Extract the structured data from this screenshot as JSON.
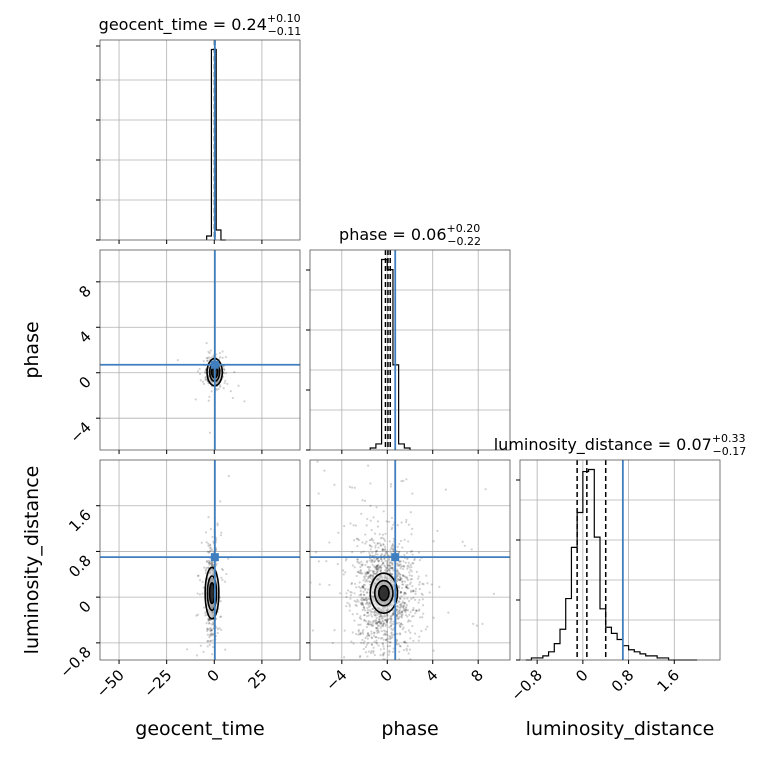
{
  "chart_data": {
    "type": "corner",
    "parameters": [
      "geocent_time",
      "phase",
      "luminosity_distance"
    ],
    "truth_color": "#3f7fbf",
    "panels": [
      {
        "id": "hist-geocent_time",
        "kind": "histogram",
        "param": "geocent_time",
        "title": {
          "prefix": "geocent_time = 0.24",
          "sup": "+0.10",
          "sub": "−0.11"
        },
        "xlim": [
          -60,
          45
        ],
        "xticks": [
          -50,
          -25,
          0,
          25
        ],
        "bin_edges": [
          -4,
          -1.5,
          1,
          3.5,
          6
        ],
        "counts": [
          0.02,
          0.95,
          0.05,
          0.0
        ],
        "quantiles": [
          0.13,
          0.24,
          0.34
        ],
        "truth": 0.3
      },
      {
        "id": "hist-phase",
        "kind": "histogram",
        "param": "phase",
        "title": {
          "prefix": "phase = 0.06",
          "sup": "+0.20",
          "sub": "−0.22"
        },
        "xlim": [
          -6.8,
          10.8
        ],
        "xticks": [
          -4,
          0,
          4,
          8
        ],
        "bin_edges": [
          -1.5,
          -1.0,
          -0.5,
          0.0,
          0.5,
          1.0,
          1.5,
          2.0
        ],
        "counts": [
          0.01,
          0.03,
          0.94,
          0.89,
          0.42,
          0.03,
          0.01
        ],
        "quantiles": [
          -0.16,
          0.06,
          0.26
        ],
        "truth": 0.7
      },
      {
        "id": "hist-luminosity_distance",
        "kind": "histogram",
        "param": "luminosity_distance",
        "title": {
          "prefix": "luminosity_distance = 0.07",
          "sup": "+0.33",
          "sub": "−0.17"
        },
        "xlim": [
          -1.1,
          2.4
        ],
        "xticks": [
          -0.8,
          0.0,
          0.8,
          1.6
        ],
        "bin_edges": [
          -1.0,
          -0.9,
          -0.8,
          -0.7,
          -0.6,
          -0.5,
          -0.4,
          -0.3,
          -0.2,
          -0.1,
          0.0,
          0.1,
          0.2,
          0.3,
          0.4,
          0.5,
          0.6,
          0.7,
          0.8,
          0.9,
          1.0,
          1.1,
          1.2,
          1.3,
          1.4,
          1.5,
          1.6,
          1.7,
          1.8,
          1.9,
          2.0
        ],
        "counts": [
          0.0,
          0.01,
          0.01,
          0.02,
          0.04,
          0.08,
          0.15,
          0.3,
          0.55,
          0.72,
          0.92,
          0.93,
          0.6,
          0.25,
          0.16,
          0.13,
          0.1,
          0.07,
          0.05,
          0.04,
          0.03,
          0.02,
          0.02,
          0.01,
          0.01,
          0.0,
          0.0,
          0.0,
          0.0,
          0.0
        ],
        "quantiles": [
          -0.1,
          0.07,
          0.4
        ],
        "truth": 0.7
      },
      {
        "id": "scatter-geocent_time-phase",
        "kind": "scatter2d",
        "xparam": "geocent_time",
        "yparam": "phase",
        "xlim": [
          -60,
          45
        ],
        "ylim": [
          -6.8,
          10.8
        ],
        "yticks": [
          -4,
          0,
          4,
          8
        ],
        "truth": [
          0.3,
          0.7
        ],
        "center": [
          0.2,
          0.05
        ],
        "spread": [
          2.0,
          0.6
        ],
        "n_points": 500,
        "contours": [
          [
            4.0,
            1.2
          ],
          [
            2.6,
            0.8
          ],
          [
            1.6,
            0.5
          ]
        ]
      },
      {
        "id": "scatter-geocent_time-luminosity_distance",
        "kind": "scatter2d",
        "xparam": "geocent_time",
        "yparam": "luminosity_distance",
        "xlim": [
          -60,
          45
        ],
        "ylim": [
          -1.1,
          2.4
        ],
        "yticks": [
          -0.8,
          0.0,
          0.8,
          1.6
        ],
        "truth": [
          0.3,
          0.7
        ],
        "center": [
          -1.2,
          0.07
        ],
        "spread": [
          1.4,
          0.4
        ],
        "n_points": 550,
        "contours": [
          [
            3.6,
            0.45
          ],
          [
            2.4,
            0.3
          ],
          [
            1.3,
            0.18
          ]
        ]
      },
      {
        "id": "scatter-phase-luminosity_distance",
        "kind": "scatter2d",
        "xparam": "phase",
        "yparam": "luminosity_distance",
        "xlim": [
          -6.8,
          10.8
        ],
        "ylim": [
          -1.1,
          2.4
        ],
        "truth": [
          0.7,
          0.7
        ],
        "center": [
          -0.3,
          0.07
        ],
        "spread": [
          1.3,
          0.5
        ],
        "n_points": 1400,
        "contours": [
          [
            1.2,
            0.35
          ],
          [
            0.8,
            0.22
          ],
          [
            0.45,
            0.13
          ]
        ]
      }
    ],
    "axis_labels": {
      "x": [
        "geocent_time",
        "phase",
        "luminosity_distance"
      ],
      "y": [
        "phase",
        "luminosity_distance"
      ]
    }
  }
}
